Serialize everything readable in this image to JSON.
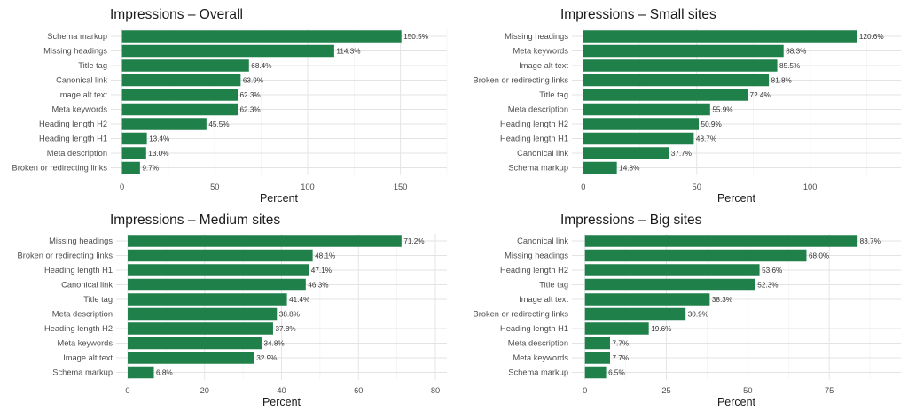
{
  "chart_data": [
    {
      "type": "bar",
      "orientation": "horizontal",
      "title": "Impressions – Overall",
      "xlabel": "Percent",
      "categories": [
        "Schema markup",
        "Missing headings",
        "Title tag",
        "Canonical link",
        "Image alt text",
        "Meta keywords",
        "Heading length H2",
        "Heading length H1",
        "Meta description",
        "Broken or redirecting links"
      ],
      "values": [
        150.5,
        114.3,
        68.4,
        63.9,
        62.3,
        62.3,
        45.5,
        13.4,
        13.0,
        9.7
      ],
      "labels": [
        "150.5%",
        "114.3%",
        "68.4%",
        "63.9%",
        "62.3%",
        "62.3%",
        "45.5%",
        "13.4%",
        "13.0%",
        "9.7%"
      ],
      "xlim": [
        -6,
        175
      ],
      "ticks": [
        0,
        50,
        100,
        150
      ],
      "tick_labels": [
        "0",
        "50",
        "100",
        "150"
      ],
      "grid": true,
      "bar_color": "#20804a"
    },
    {
      "type": "bar",
      "orientation": "horizontal",
      "title": "Impressions – Small sites",
      "xlabel": "Percent",
      "categories": [
        "Missing headings",
        "Meta keywords",
        "Image alt text",
        "Broken or redirecting links",
        "Title tag",
        "Meta description",
        "Heading length H2",
        "Heading length H1",
        "Canonical link",
        "Schema markup"
      ],
      "values": [
        120.6,
        88.3,
        85.5,
        81.8,
        72.4,
        55.9,
        50.9,
        48.7,
        37.7,
        14.8
      ],
      "labels": [
        "120.6%",
        "88.3%",
        "85.5%",
        "81.8%",
        "72.4%",
        "55.9%",
        "50.9%",
        "48.7%",
        "37.7%",
        "14.8%"
      ],
      "xlim": [
        -5,
        140
      ],
      "ticks": [
        0,
        50,
        100
      ],
      "tick_labels": [
        "0",
        "50",
        "100"
      ],
      "grid": true,
      "bar_color": "#20804a"
    },
    {
      "type": "bar",
      "orientation": "horizontal",
      "title": "Impressions – Medium sites",
      "xlabel": "Percent",
      "categories": [
        "Missing headings",
        "Broken or redirecting links",
        "Heading length H1",
        "Canonical link",
        "Title tag",
        "Meta description",
        "Heading length H2",
        "Meta keywords",
        "Image alt text",
        "Schema markup"
      ],
      "values": [
        71.2,
        48.1,
        47.1,
        46.3,
        41.4,
        38.8,
        37.8,
        34.8,
        32.9,
        6.8
      ],
      "labels": [
        "71.2%",
        "48.1%",
        "47.1%",
        "46.3%",
        "41.4%",
        "38.8%",
        "37.8%",
        "34.8%",
        "32.9%",
        "6.8%"
      ],
      "xlim": [
        -3,
        83
      ],
      "ticks": [
        0,
        20,
        40,
        60,
        80
      ],
      "tick_labels": [
        "0",
        "20",
        "40",
        "60",
        "80"
      ],
      "grid": true,
      "bar_color": "#20804a"
    },
    {
      "type": "bar",
      "orientation": "horizontal",
      "title": "Impressions – Big sites",
      "xlabel": "Percent",
      "categories": [
        "Canonical link",
        "Missing headings",
        "Heading length H2",
        "Title tag",
        "Image alt text",
        "Broken or redirecting links",
        "Heading length H1",
        "Meta description",
        "Meta keywords",
        "Schema markup"
      ],
      "values": [
        83.7,
        68.0,
        53.6,
        52.3,
        38.3,
        30.9,
        19.6,
        7.7,
        7.7,
        6.5
      ],
      "labels": [
        "83.7%",
        "68.0%",
        "53.6%",
        "52.3%",
        "38.3%",
        "30.9%",
        "19.6%",
        "7.7%",
        "7.7%",
        "6.5%"
      ],
      "xlim": [
        -4,
        97
      ],
      "ticks": [
        0,
        25,
        50,
        75
      ],
      "tick_labels": [
        "0",
        "25",
        "50",
        "75"
      ],
      "grid": true,
      "bar_color": "#20804a"
    }
  ]
}
